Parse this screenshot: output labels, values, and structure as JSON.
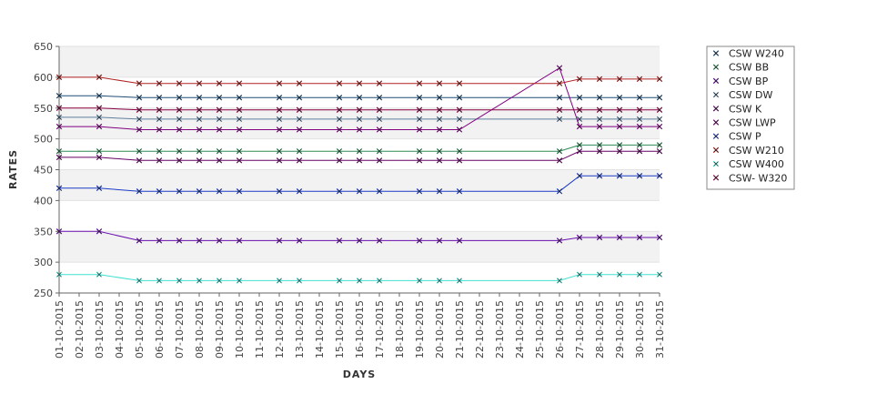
{
  "chart_data": {
    "type": "line",
    "xlabel": "DAYS",
    "ylabel": "RATES",
    "ylim": [
      250,
      650
    ],
    "yticks": [
      250,
      300,
      350,
      400,
      450,
      500,
      550,
      600,
      650
    ],
    "grid": true,
    "legend_position": "right",
    "x_tick_labels": [
      "01-10-2015",
      "02-10-2015",
      "03-10-2015",
      "04-10-2015",
      "05-10-2015",
      "06-10-2015",
      "07-10-2015",
      "08-10-2015",
      "09-10-2015",
      "10-10-2015",
      "11-10-2015",
      "12-10-2015",
      "13-10-2015",
      "14-10-2015",
      "15-10-2015",
      "16-10-2015",
      "17-10-2015",
      "18-10-2015",
      "19-10-2015",
      "20-10-2015",
      "21-10-2015",
      "22-10-2015",
      "23-10-2015",
      "24-10-2015",
      "25-10-2015",
      "26-10-2015",
      "27-10-2015",
      "28-10-2015",
      "29-10-2015",
      "30-10-2015",
      "31-10-2015"
    ],
    "x": [
      "01-10-2015",
      "03-10-2015",
      "05-10-2015",
      "06-10-2015",
      "07-10-2015",
      "08-10-2015",
      "09-10-2015",
      "10-10-2015",
      "12-10-2015",
      "13-10-2015",
      "15-10-2015",
      "16-10-2015",
      "17-10-2015",
      "19-10-2015",
      "20-10-2015",
      "21-10-2015",
      "26-10-2015",
      "27-10-2015",
      "28-10-2015",
      "29-10-2015",
      "30-10-2015",
      "31-10-2015"
    ],
    "series": [
      {
        "name": "CSW  W240",
        "color": "#1f4e79",
        "values": [
          570,
          570,
          567,
          567,
          567,
          567,
          567,
          567,
          567,
          567,
          567,
          567,
          567,
          567,
          567,
          567,
          567,
          567,
          567,
          567,
          567,
          567
        ]
      },
      {
        "name": "CSW BB",
        "color": "#2e8b57",
        "values": [
          480,
          480,
          480,
          480,
          480,
          480,
          480,
          480,
          480,
          480,
          480,
          480,
          480,
          480,
          480,
          480,
          480,
          490,
          490,
          490,
          490,
          490
        ]
      },
      {
        "name": "CSW BP",
        "color": "#6a0dad",
        "values": [
          350,
          350,
          335,
          335,
          335,
          335,
          335,
          335,
          335,
          335,
          335,
          335,
          335,
          335,
          335,
          335,
          335,
          340,
          340,
          340,
          340,
          340
        ]
      },
      {
        "name": "CSW DW",
        "color": "#5f7f9f",
        "values": [
          535,
          535,
          532,
          532,
          532,
          532,
          532,
          532,
          532,
          532,
          532,
          532,
          532,
          532,
          532,
          532,
          532,
          532,
          532,
          532,
          532,
          532
        ]
      },
      {
        "name": "CSW K",
        "color": "#660066",
        "values": [
          470,
          470,
          465,
          465,
          465,
          465,
          465,
          465,
          465,
          465,
          465,
          465,
          465,
          465,
          465,
          465,
          465,
          480,
          480,
          480,
          480,
          480
        ]
      },
      {
        "name": "CSW LWP",
        "color": "#800080",
        "values": [
          520,
          520,
          515,
          515,
          515,
          515,
          515,
          515,
          515,
          515,
          515,
          515,
          515,
          515,
          515,
          515,
          615,
          520,
          520,
          520,
          520,
          520
        ]
      },
      {
        "name": "CSW P",
        "color": "#1a3cc8",
        "values": [
          420,
          420,
          415,
          415,
          415,
          415,
          415,
          415,
          415,
          415,
          415,
          415,
          415,
          415,
          415,
          415,
          415,
          440,
          440,
          440,
          440,
          440
        ]
      },
      {
        "name": "CSW W210",
        "color": "#b22222",
        "values": [
          600,
          600,
          590,
          590,
          590,
          590,
          590,
          590,
          590,
          590,
          590,
          590,
          590,
          590,
          590,
          590,
          590,
          597,
          597,
          597,
          597,
          597
        ]
      },
      {
        "name": "CSW W400",
        "color": "#40e0d0",
        "values": [
          280,
          280,
          270,
          270,
          270,
          270,
          270,
          270,
          270,
          270,
          270,
          270,
          270,
          270,
          270,
          270,
          270,
          280,
          280,
          280,
          280,
          280
        ]
      },
      {
        "name": "CSW- W320",
        "color": "#8b0045",
        "values": [
          550,
          550,
          547,
          547,
          547,
          547,
          547,
          547,
          547,
          547,
          547,
          547,
          547,
          547,
          547,
          547,
          547,
          547,
          547,
          547,
          547,
          547
        ]
      }
    ]
  }
}
